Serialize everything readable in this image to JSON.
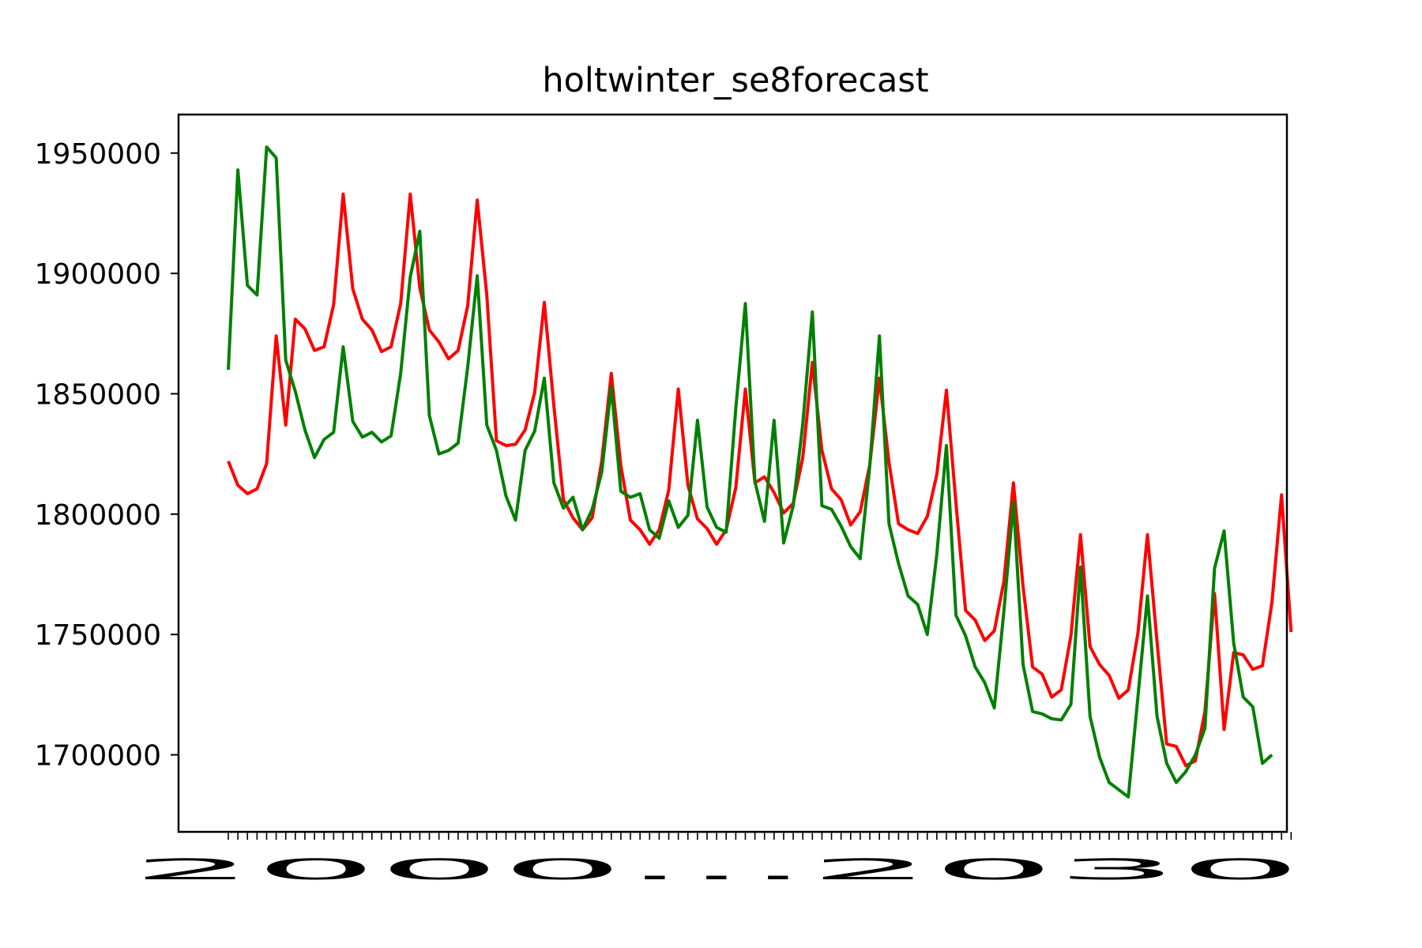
{
  "chart_data": {
    "type": "line",
    "title": "holtwinter_se8forecast",
    "xlabel": "",
    "ylabel": "",
    "ylim": [
      1668000,
      1966000
    ],
    "yticks": [
      1700000,
      1750000,
      1800000,
      1850000,
      1900000,
      1950000
    ],
    "ytick_labels": [
      "1700000",
      "1750000",
      "1800000",
      "1850000",
      "1900000",
      "1950000"
    ],
    "xtick_labels_visible": "2000...2030",
    "grid": false,
    "legend": "none",
    "series": [
      {
        "color": "#ff0000",
        "values": [
          1822000,
          1812000,
          1808500,
          1810500,
          1821000,
          1874000,
          1837000,
          1881000,
          1877000,
          1868000,
          1869500,
          1887000,
          1933000,
          1893500,
          1881000,
          1876500,
          1867500,
          1869500,
          1887500,
          1933000,
          1894000,
          1876500,
          1871500,
          1864500,
          1868000,
          1886500,
          1930500,
          1891000,
          1830500,
          1828500,
          1829000,
          1835000,
          1850500,
          1888000,
          1845000,
          1806000,
          1798500,
          1793500,
          1798500,
          1822000,
          1858500,
          1820000,
          1797500,
          1793500,
          1787500,
          1793500,
          1810000,
          1852000,
          1812000,
          1798000,
          1794000,
          1787500,
          1793500,
          1811000,
          1852000,
          1813000,
          1815500,
          1809000,
          1800500,
          1804500,
          1823500,
          1863000,
          1826500,
          1810500,
          1806000,
          1795500,
          1801000,
          1820500,
          1856500,
          1821500,
          1796000,
          1793500,
          1792000,
          1799000,
          1816500,
          1851500,
          1804500,
          1760000,
          1756000,
          1747500,
          1751500,
          1772000,
          1813000,
          1770000,
          1736500,
          1733500,
          1724000,
          1727000,
          1749500,
          1791500,
          1745000,
          1737500,
          1733000,
          1723500,
          1727000,
          1750500,
          1791500,
          1747000,
          1704500,
          1703500,
          1695500,
          1697500,
          1718000,
          1767000,
          1710500,
          1742500,
          1741500,
          1735500,
          1737000,
          1763500,
          1808000,
          1751000
        ]
      },
      {
        "color": "#008000",
        "values": [
          1860000,
          1943000,
          1895000,
          1891000,
          1952500,
          1948000,
          1864000,
          1851000,
          1835000,
          1823500,
          1831000,
          1834000,
          1869500,
          1838500,
          1832000,
          1834000,
          1830000,
          1832500,
          1858500,
          1898500,
          1917500,
          1841000,
          1825000,
          1826500,
          1829500,
          1861000,
          1899000,
          1837000,
          1826500,
          1807500,
          1797500,
          1826500,
          1834500,
          1856500,
          1813000,
          1802500,
          1807000,
          1793500,
          1802000,
          1817500,
          1853000,
          1809500,
          1807000,
          1808500,
          1793500,
          1790000,
          1805500,
          1794500,
          1799500,
          1839000,
          1803000,
          1794500,
          1792500,
          1844000,
          1887500,
          1813500,
          1797000,
          1839000,
          1788000,
          1803500,
          1837500,
          1884000,
          1803500,
          1802000,
          1795000,
          1786500,
          1781500,
          1820000,
          1874000,
          1796000,
          1779500,
          1766000,
          1762500,
          1750000,
          1783500,
          1828500,
          1758000,
          1749500,
          1736500,
          1730000,
          1719500,
          1759500,
          1805000,
          1737500,
          1718000,
          1717000,
          1715000,
          1714500,
          1721000,
          1778000,
          1716000,
          1699000,
          1688500,
          1685500,
          1682500,
          1724000,
          1766000,
          1716000,
          1696500,
          1688500,
          1693000,
          1700000,
          1711000,
          1777500,
          1793000,
          1746500,
          1724000,
          1720000,
          1696500,
          1700000
        ]
      }
    ]
  }
}
